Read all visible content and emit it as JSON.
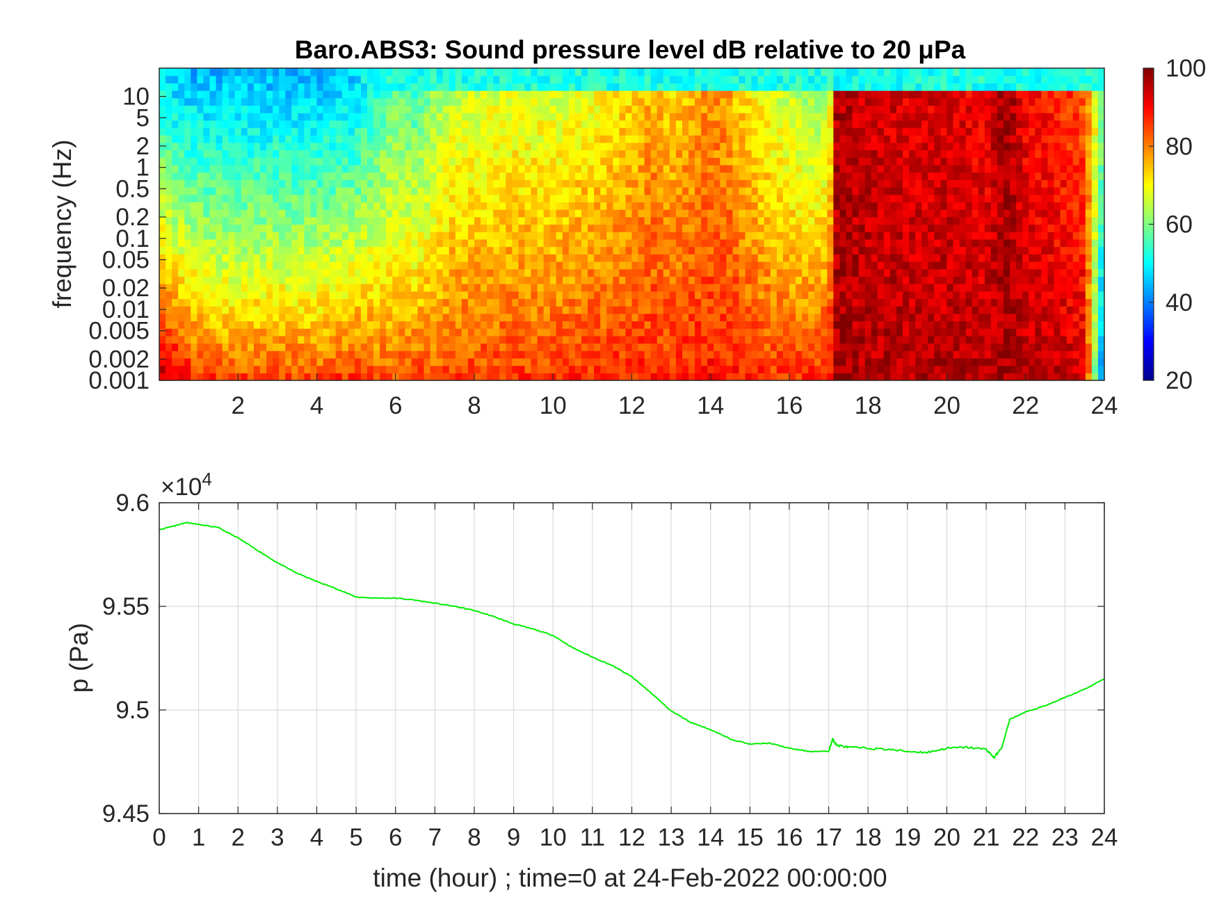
{
  "chart_data": [
    {
      "type": "heatmap",
      "title": "Baro.ABS3: Sound pressure level dB relative to 20 μPa",
      "xlabel": "",
      "ylabel": "frequency (Hz)",
      "xlim": [
        0,
        24
      ],
      "x_ticks": [
        2,
        4,
        6,
        8,
        10,
        12,
        14,
        16,
        18,
        20,
        22,
        24
      ],
      "y_scale": "log",
      "ylim": [
        0.001,
        25
      ],
      "y_ticks": [
        0.001,
        0.002,
        0.005,
        0.01,
        0.02,
        0.05,
        0.1,
        0.2,
        0.5,
        1,
        2,
        5,
        10
      ],
      "y_tick_labels": [
        "0.001",
        "0.002",
        "0.005",
        "0.01",
        "0.02",
        "0.05",
        "0.1",
        "0.2",
        "0.5",
        "1",
        "2",
        "5",
        "10"
      ],
      "colormap": "jet",
      "colorbar": {
        "range": [
          20,
          100
        ],
        "ticks": [
          20,
          40,
          60,
          80,
          100
        ]
      },
      "grid": false,
      "level_profile": {
        "description_hours": [
          0,
          0.5,
          1,
          2,
          3,
          4,
          5,
          5.5,
          6,
          6.5,
          7,
          7.5,
          8,
          9,
          10,
          11,
          12,
          12.5,
          13,
          14,
          14.5,
          15,
          16,
          16.5,
          17,
          17.2,
          18,
          19,
          20,
          21,
          21.5,
          22,
          23,
          23.5,
          24
        ],
        "low_freq_level_db": [
          98,
          94,
          88,
          86,
          87,
          86,
          88,
          85,
          85,
          86,
          85,
          87,
          86,
          87,
          87,
          88,
          88,
          88,
          88,
          89,
          89,
          88,
          87,
          87,
          90,
          97,
          96,
          96,
          96,
          96,
          97,
          96,
          95,
          94,
          30
        ],
        "high_freq_level_db": [
          48,
          44,
          44,
          44,
          44,
          44,
          46,
          52,
          56,
          54,
          60,
          64,
          65,
          66,
          66,
          68,
          72,
          76,
          72,
          78,
          76,
          70,
          64,
          62,
          60,
          96,
          94,
          92,
          92,
          90,
          98,
          90,
          86,
          82,
          60
        ]
      }
    },
    {
      "type": "line",
      "title": "",
      "xlabel": "time (hour) ; time=0 at 24-Feb-2022 00:00:00",
      "ylabel": "p (Pa)",
      "y_exponent_label": "×10",
      "y_exponent_power": "4",
      "xlim": [
        0,
        24
      ],
      "ylim": [
        94500,
        96000
      ],
      "x_ticks": [
        0,
        1,
        2,
        3,
        4,
        5,
        6,
        7,
        8,
        9,
        10,
        11,
        12,
        13,
        14,
        15,
        16,
        17,
        18,
        19,
        20,
        21,
        22,
        23,
        24
      ],
      "y_ticks": [
        94500,
        95000,
        95500,
        96000
      ],
      "y_tick_labels": [
        "9.45",
        "9.5",
        "9.55",
        "9.6"
      ],
      "grid": true,
      "series": [
        {
          "color": "#00ee00",
          "x": [
            0,
            0.5,
            0.7,
            1,
            1.5,
            2,
            2.5,
            3,
            3.5,
            4,
            4.5,
            5,
            5.5,
            6,
            6.5,
            7,
            7.5,
            8,
            8.5,
            9,
            9.5,
            10,
            10.5,
            11,
            11.5,
            12,
            12.5,
            13,
            13.5,
            14,
            14.5,
            15,
            15.5,
            16,
            16.5,
            17,
            17.1,
            17.2,
            17.5,
            18,
            18.5,
            19,
            19.5,
            20,
            20.5,
            21,
            21.2,
            21.4,
            21.6,
            22,
            22.5,
            23,
            23.5,
            24
          ],
          "y": [
            95870,
            95895,
            95905,
            95895,
            95880,
            95830,
            95770,
            95710,
            95660,
            95620,
            95585,
            95545,
            95540,
            95540,
            95530,
            95515,
            95500,
            95480,
            95450,
            95415,
            95390,
            95360,
            95300,
            95255,
            95215,
            95160,
            95080,
            94995,
            94940,
            94905,
            94860,
            94835,
            94840,
            94815,
            94800,
            94800,
            94860,
            94830,
            94820,
            94815,
            94810,
            94800,
            94795,
            94815,
            94820,
            94810,
            94770,
            94820,
            94955,
            94990,
            95020,
            95060,
            95100,
            95150
          ]
        }
      ]
    }
  ]
}
